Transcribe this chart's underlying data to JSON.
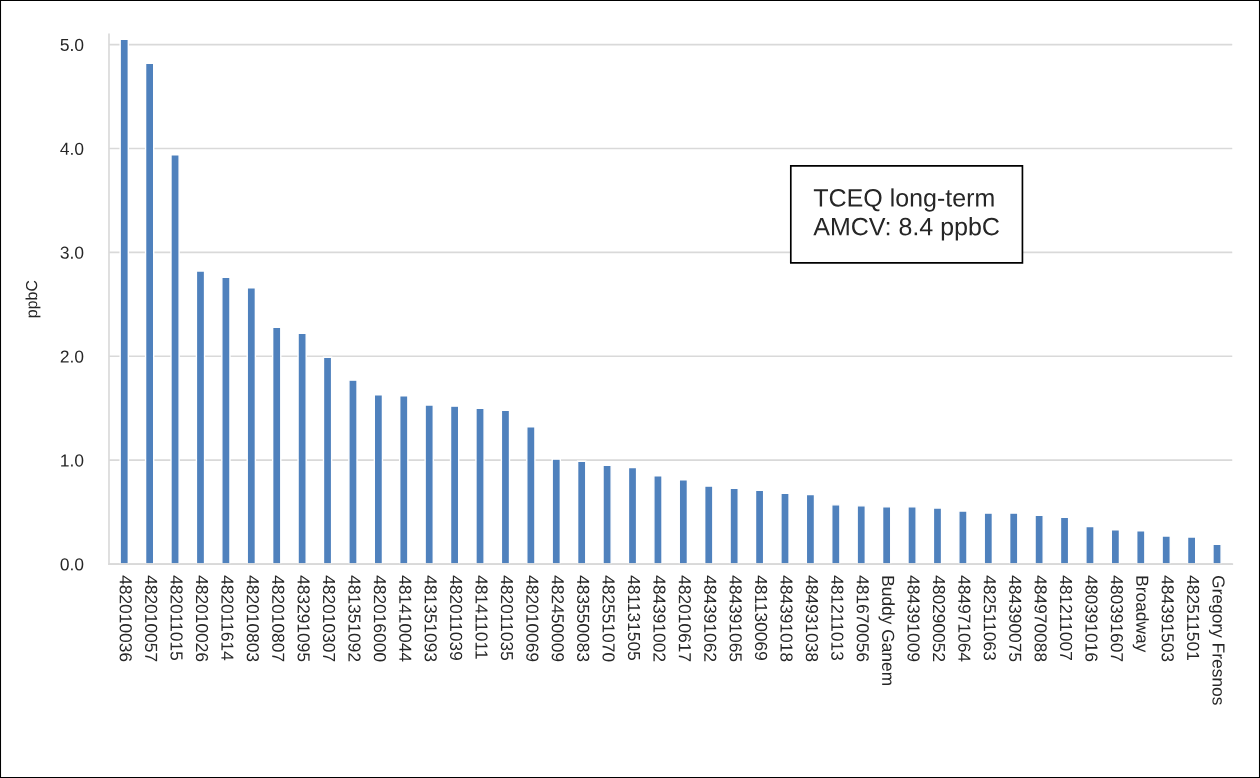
{
  "chart_data": {
    "type": "bar",
    "categories": [
      "482010036",
      "482010057",
      "482011015",
      "482010026",
      "482011614",
      "482010803",
      "482010807",
      "483291095",
      "482010307",
      "481351092",
      "482016000",
      "481410044",
      "481351093",
      "482011039",
      "481411011",
      "482011035",
      "482010069",
      "482450009",
      "483550083",
      "482551070",
      "481131505",
      "484391002",
      "482010617",
      "484391062",
      "484391065",
      "481130069",
      "484391018",
      "484931038",
      "481211013",
      "481670056",
      "Buddy Ganem",
      "484391009",
      "480290052",
      "484971064",
      "482511063",
      "484390075",
      "484970088",
      "481211007",
      "480391016",
      "480391607",
      "Broadway",
      "484391503",
      "482511501",
      "Gregory Fresnos"
    ],
    "values": [
      5.05,
      4.82,
      3.94,
      2.82,
      2.76,
      2.66,
      2.28,
      2.22,
      1.99,
      1.77,
      1.63,
      1.62,
      1.53,
      1.52,
      1.5,
      1.48,
      1.32,
      1.01,
      0.99,
      0.95,
      0.93,
      0.85,
      0.81,
      0.75,
      0.73,
      0.71,
      0.68,
      0.67,
      0.57,
      0.56,
      0.55,
      0.55,
      0.54,
      0.51,
      0.49,
      0.49,
      0.47,
      0.45,
      0.36,
      0.33,
      0.32,
      0.27,
      0.26,
      0.19
    ],
    "color": "#4f81bd",
    "ylabel": "ppbC",
    "ylim": [
      0,
      5.1
    ],
    "yticks": [
      {
        "value": 0,
        "label": "0.0"
      },
      {
        "value": 1,
        "label": "1.0"
      },
      {
        "value": 2,
        "label": "2.0"
      },
      {
        "value": 3,
        "label": "3.0"
      },
      {
        "value": 4,
        "label": "4.0"
      },
      {
        "value": 5,
        "label": "5.0"
      }
    ],
    "grid": "y",
    "annotations": [
      "TCEQ long-term\nAMCV: 8.4 ppbC"
    ]
  }
}
